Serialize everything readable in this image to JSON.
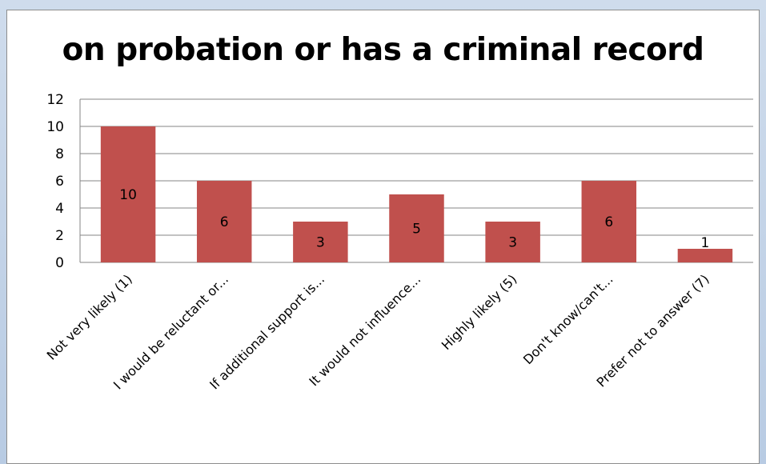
{
  "chart_data": {
    "type": "bar",
    "title": "on probation or has a criminal record",
    "xlabel": "",
    "ylabel": "",
    "categories": [
      "Not very likely (1)",
      "I would be reluctant or...",
      "If additional support is...",
      "It would not influence...",
      "Highly likely (5)",
      "Don't know/can't...",
      "Prefer not to answer (7)"
    ],
    "values": [
      10,
      6,
      3,
      5,
      3,
      6,
      1
    ],
    "ylim": [
      0,
      12
    ],
    "yticks": [
      "0",
      "2",
      "4",
      "6",
      "8",
      "10",
      "12"
    ],
    "grid": true,
    "legend": "none",
    "bar_color": "#c0504d"
  }
}
